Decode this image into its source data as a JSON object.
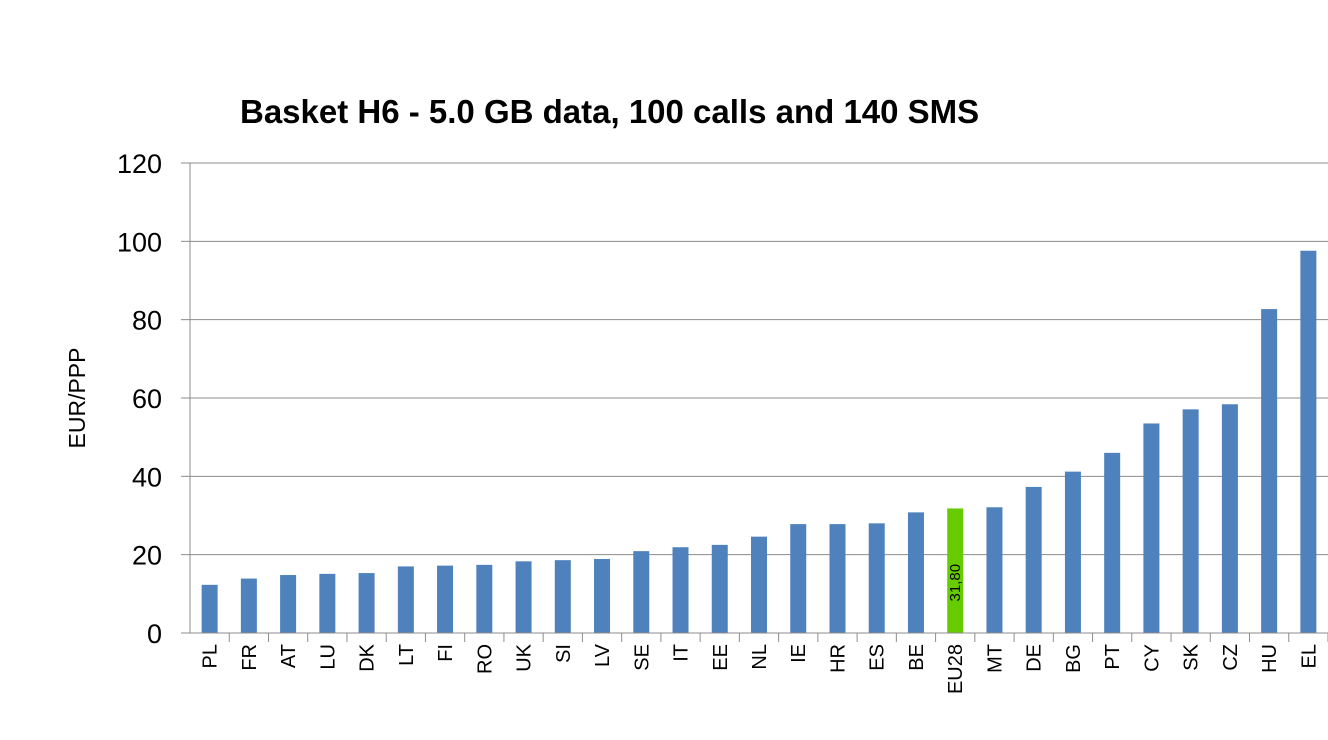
{
  "chart_data": {
    "type": "bar",
    "title": "Basket H6 - 5.0 GB data, 100 calls and 140 SMS",
    "xlabel": "",
    "ylabel": "EUR/PPP",
    "ylim": [
      0,
      120
    ],
    "yticks": [
      0,
      20,
      40,
      60,
      80,
      100,
      120
    ],
    "grid": true,
    "legend": "none",
    "categories": [
      "PL",
      "FR",
      "AT",
      "LU",
      "DK",
      "LT",
      "FI",
      "RO",
      "UK",
      "SI",
      "LV",
      "SE",
      "IT",
      "EE",
      "NL",
      "IE",
      "HR",
      "ES",
      "BE",
      "EU28",
      "MT",
      "DE",
      "BG",
      "PT",
      "CY",
      "SK",
      "CZ",
      "HU",
      "EL"
    ],
    "values": [
      12.3,
      13.9,
      14.8,
      15.1,
      15.3,
      17.0,
      17.2,
      17.4,
      18.3,
      18.6,
      18.9,
      20.9,
      21.9,
      22.5,
      24.6,
      27.8,
      27.8,
      28.0,
      30.8,
      31.8,
      32.1,
      37.3,
      41.2,
      46.0,
      53.5,
      57.1,
      58.4,
      82.7,
      97.6
    ],
    "highlight": {
      "category": "EU28",
      "label": "31,80",
      "color": "#66cc00"
    },
    "bar_color": "#4f81bd"
  }
}
